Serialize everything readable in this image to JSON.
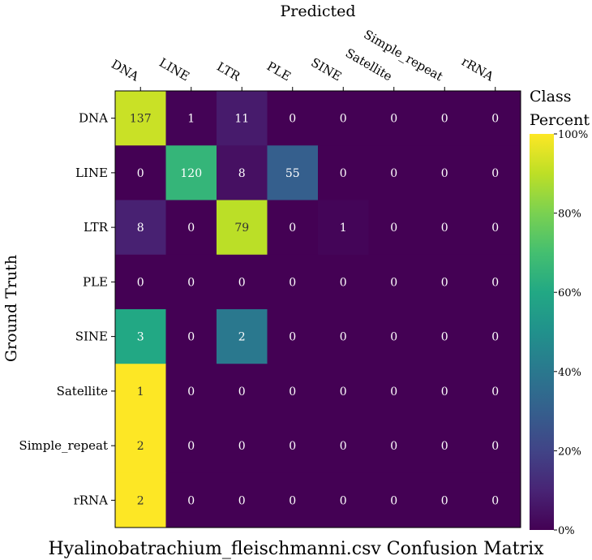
{
  "chart_data": {
    "type": "heatmap",
    "title": "Hyalinobatrachium_fleischmanni.csv Confusion Matrix",
    "xlabel": "Predicted",
    "ylabel": "Ground Truth",
    "x_categories": [
      "DNA",
      "LINE",
      "LTR",
      "PLE",
      "SINE",
      "Satellite",
      "Simple_repeat",
      "rRNA"
    ],
    "y_categories": [
      "DNA",
      "LINE",
      "LTR",
      "PLE",
      "SINE",
      "Satellite",
      "Simple_repeat",
      "rRNA"
    ],
    "values": [
      [
        137,
        1,
        11,
        0,
        0,
        0,
        0,
        0
      ],
      [
        0,
        120,
        8,
        55,
        0,
        0,
        0,
        0
      ],
      [
        8,
        0,
        79,
        0,
        1,
        0,
        0,
        0
      ],
      [
        0,
        0,
        0,
        0,
        0,
        0,
        0,
        0
      ],
      [
        3,
        0,
        2,
        0,
        0,
        0,
        0,
        0
      ],
      [
        1,
        0,
        0,
        0,
        0,
        0,
        0,
        0
      ],
      [
        2,
        0,
        0,
        0,
        0,
        0,
        0,
        0
      ],
      [
        2,
        0,
        0,
        0,
        0,
        0,
        0,
        0
      ]
    ],
    "colorbar": {
      "label_lines": [
        "Class",
        "Percent"
      ],
      "range": [
        0,
        100
      ],
      "ticks": [
        "0%",
        "20%",
        "40%",
        "60%",
        "80%",
        "100%"
      ],
      "colormap": "viridis"
    }
  }
}
